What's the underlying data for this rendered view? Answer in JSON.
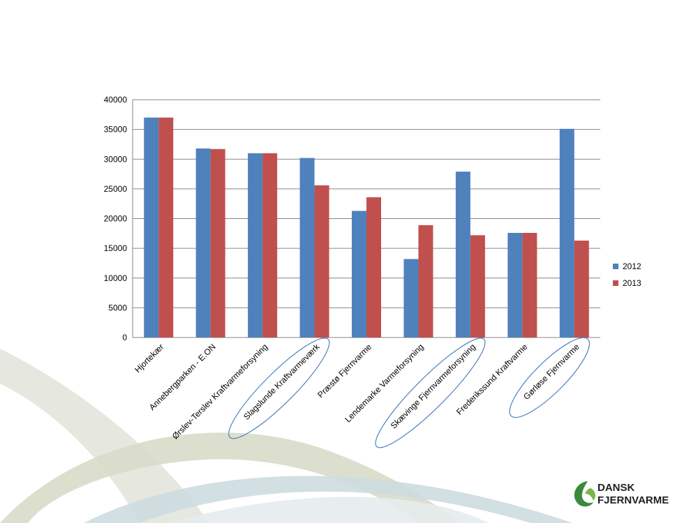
{
  "chart_data": {
    "type": "bar",
    "categories": [
      "Hjortekær",
      "Annebergparken - E.ON",
      "Ørslev-Terslev Kraftvarmeforsyning",
      "Slagslunde Kraftvarmeværk",
      "Præstø Fjernvarme",
      "Lendemarke Varmeforsyning",
      "Skævinge Fjernvarmeforsyning",
      "Frederikssund Kraftvarme",
      "Gørløse Fjernvarme"
    ],
    "series": [
      {
        "name": "2012",
        "color": "#4f81bd",
        "values": [
          37000,
          31800,
          31000,
          30200,
          21300,
          13200,
          27900,
          17600,
          35100
        ]
      },
      {
        "name": "2013",
        "color": "#c0504d",
        "values": [
          37000,
          31700,
          31000,
          25600,
          23600,
          18900,
          17200,
          17600,
          16300
        ]
      }
    ],
    "ylim": [
      0,
      40000
    ],
    "yticks": [
      0,
      5000,
      10000,
      15000,
      20000,
      25000,
      30000,
      35000,
      40000
    ],
    "grid": true,
    "legend": "right",
    "highlighted_categories": [
      "Slagslunde Kraftvarmeværk",
      "Skævinge Fjernvarmeforsyning",
      "Gørløse Fjernvarme"
    ],
    "highlight_color": "#4f81bd"
  },
  "logo": {
    "line1": "DANSK",
    "line2": "FJERNVARME",
    "icon": "swirl-logo-icon"
  },
  "colors": {
    "grid": "#868686",
    "swoosh_green": "#d9dccd",
    "swoosh_blue": "#d2dfe3"
  }
}
